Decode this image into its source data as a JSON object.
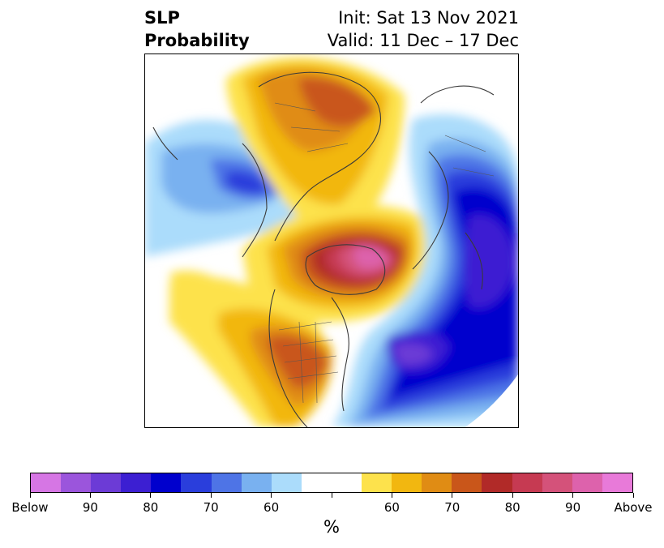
{
  "title": {
    "left_line1": "SLP",
    "left_line2": "Probability",
    "right_line1": "Init: Sat 13 Nov 2021",
    "right_line2": "Valid: 11 Dec – 17 Dec"
  },
  "map": {
    "projection": "north-polar-stereographic",
    "features": [
      "land-outlines",
      "country-borders",
      "us-state-borders"
    ]
  },
  "colorbar": {
    "unit_label": "%",
    "colors": [
      "#d676e4",
      "#9b55dc",
      "#6c3bd6",
      "#3c1fd2",
      "#0000cd",
      "#2a3edc",
      "#4e74e6",
      "#79b1f0",
      "#abdcfb",
      "#ffffff",
      "#ffffff",
      "#fde24c",
      "#f2b710",
      "#e08c14",
      "#c9561a",
      "#b12a28",
      "#c63a52",
      "#d4527a",
      "#dd62ac",
      "#e87ad9"
    ],
    "tick_labels": [
      "Below",
      "90",
      "80",
      "70",
      "60",
      "",
      "60",
      "70",
      "80",
      "90",
      "Above"
    ]
  }
}
